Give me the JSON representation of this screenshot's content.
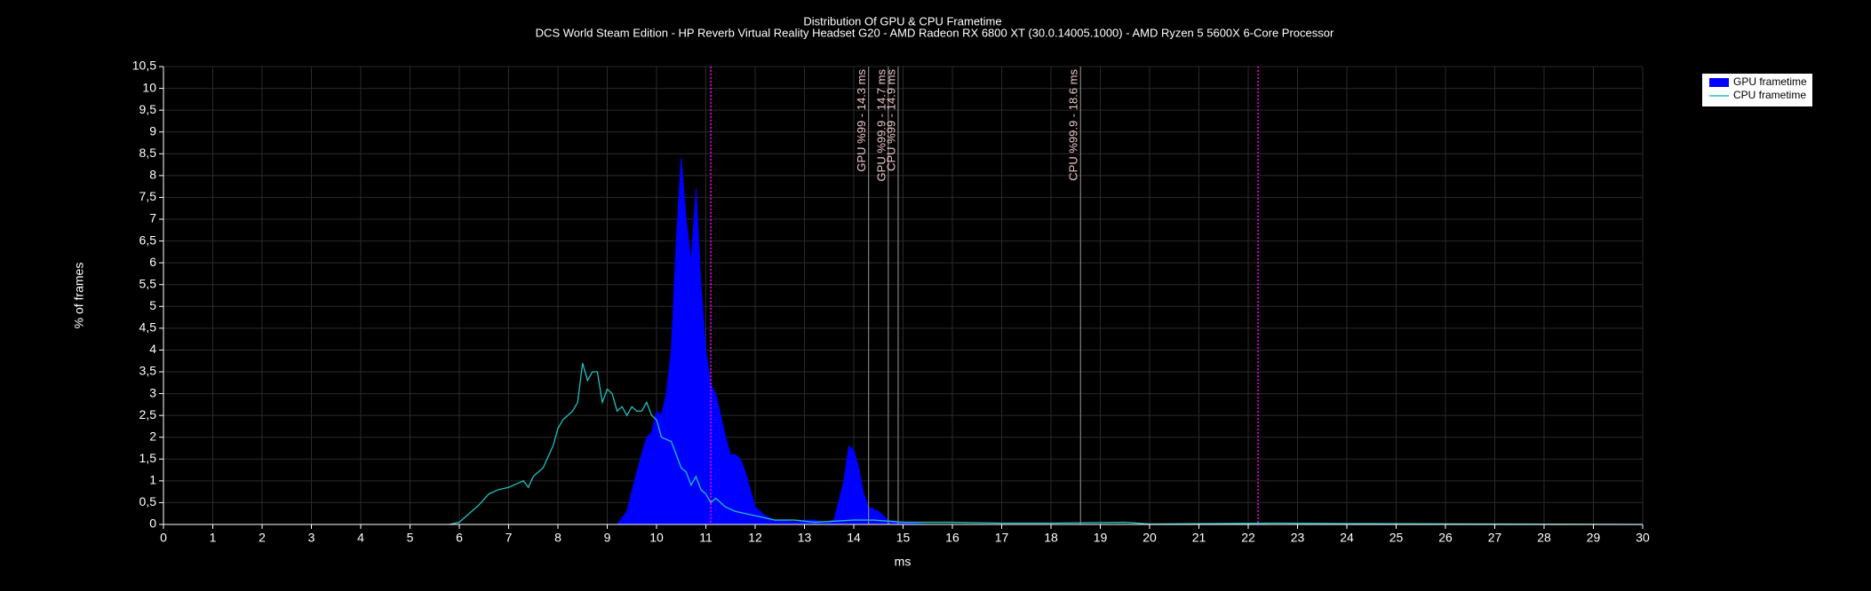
{
  "chart_data": {
    "type": "area_line",
    "title": "Distribution Of GPU & CPU Frametime",
    "subtitle": "DCS World Steam Edition - HP Reverb Virtual Reality Headset G20 - AMD Radeon RX 6800 XT (30.0.14005.1000) - AMD Ryzen 5 5600X 6-Core Processor",
    "x_label": "ms",
    "y_label": "% of frames",
    "xlim": [
      0,
      30
    ],
    "ylim": [
      0,
      10.5
    ],
    "xticks": [
      0,
      1,
      2,
      3,
      4,
      5,
      6,
      7,
      8,
      9,
      10,
      11,
      12,
      13,
      14,
      15,
      16,
      17,
      18,
      19,
      20,
      21,
      22,
      23,
      24,
      25,
      26,
      27,
      28,
      29,
      30
    ],
    "yticks": [
      0,
      {
        "value": 0.5,
        "label": "0,5"
      },
      1,
      {
        "value": 1.5,
        "label": "1,5"
      },
      2,
      {
        "value": 2.5,
        "label": "2,5"
      },
      3,
      {
        "value": 3.5,
        "label": "3,5"
      },
      4,
      {
        "value": 4.5,
        "label": "4,5"
      },
      5,
      {
        "value": 5.5,
        "label": "5,5"
      },
      6,
      {
        "value": 6.5,
        "label": "6,5"
      },
      7,
      {
        "value": 7.5,
        "label": "7,5"
      },
      8,
      {
        "value": 8.5,
        "label": "8,5"
      },
      9,
      {
        "value": 9.5,
        "label": "9,5"
      },
      10,
      {
        "value": 10.5,
        "label": "10,5"
      }
    ],
    "grid": true,
    "legend": "top-right",
    "series": [
      {
        "name": "GPU frametime",
        "color": "#0000ff",
        "type": "area",
        "x": [
          9.2,
          9.4,
          9.6,
          9.8,
          9.9,
          10.0,
          10.1,
          10.2,
          10.3,
          10.4,
          10.5,
          10.6,
          10.7,
          10.8,
          10.9,
          11.0,
          11.1,
          11.2,
          11.3,
          11.4,
          11.5,
          11.6,
          11.7,
          11.8,
          11.9,
          12.0,
          12.2,
          12.4,
          12.6,
          12.8,
          13.0,
          13.2,
          13.4,
          13.6,
          13.8,
          13.9,
          14.0,
          14.1,
          14.2,
          14.3,
          14.5,
          14.7,
          15.0,
          15.5
        ],
        "values": [
          0,
          0.3,
          1.2,
          2.0,
          2.1,
          2.6,
          2.5,
          3.0,
          4.0,
          6.5,
          8.4,
          7.0,
          6.0,
          7.7,
          5.5,
          4.0,
          3.2,
          3.0,
          2.5,
          2.0,
          1.6,
          1.6,
          1.5,
          1.2,
          0.8,
          0.4,
          0.2,
          0.1,
          0.1,
          0.05,
          0.1,
          0.1,
          0.05,
          0.1,
          1.0,
          1.8,
          1.7,
          1.3,
          0.7,
          0.4,
          0.3,
          0.1,
          0.05,
          0
        ]
      },
      {
        "name": "CPU frametime",
        "color": "#20c0c0",
        "type": "line",
        "x": [
          5.8,
          6.0,
          6.2,
          6.4,
          6.6,
          6.8,
          7.0,
          7.2,
          7.3,
          7.4,
          7.5,
          7.7,
          7.9,
          8.0,
          8.1,
          8.2,
          8.3,
          8.4,
          8.5,
          8.6,
          8.7,
          8.8,
          8.9,
          9.0,
          9.1,
          9.2,
          9.3,
          9.4,
          9.5,
          9.6,
          9.7,
          9.8,
          9.9,
          10.0,
          10.1,
          10.3,
          10.5,
          10.6,
          10.7,
          10.8,
          10.9,
          11.0,
          11.1,
          11.2,
          11.4,
          11.6,
          11.8,
          12.0,
          12.2,
          12.4,
          12.8,
          13.2,
          14.0,
          14.4,
          15,
          16,
          17,
          18,
          19.5,
          20,
          22.6,
          24,
          30
        ],
        "values": [
          0,
          0.05,
          0.25,
          0.45,
          0.7,
          0.8,
          0.85,
          0.95,
          1.0,
          0.85,
          1.1,
          1.3,
          1.8,
          2.2,
          2.4,
          2.5,
          2.6,
          2.8,
          3.7,
          3.3,
          3.5,
          3.5,
          2.8,
          3.1,
          3.0,
          2.6,
          2.7,
          2.5,
          2.7,
          2.6,
          2.6,
          2.8,
          2.5,
          2.4,
          2.0,
          1.9,
          1.3,
          1.2,
          0.9,
          1.1,
          0.8,
          0.7,
          0.5,
          0.6,
          0.4,
          0.3,
          0.25,
          0.2,
          0.15,
          0.1,
          0.1,
          0.05,
          0.1,
          0.1,
          0.05,
          0.05,
          0.03,
          0.03,
          0.05,
          0.01,
          0.03,
          0.02,
          0
        ]
      }
    ],
    "reference_lines": {
      "color": "#ff00ff",
      "x": [
        11.1,
        22.2
      ]
    },
    "markers": [
      {
        "label": "GPU %99 - 14.3 ms",
        "x": 14.3
      },
      {
        "label": "GPU %99.9 - 14.7 ms",
        "x": 14.7
      },
      {
        "label": "CPU %99 - 14.9 ms",
        "x": 14.9
      },
      {
        "label": "CPU %99.9 - 18.6 ms",
        "x": 18.6
      }
    ]
  }
}
